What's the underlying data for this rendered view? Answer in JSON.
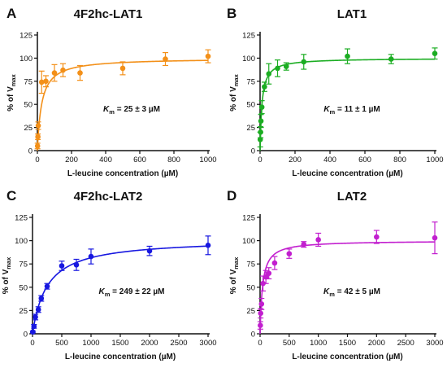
{
  "chart_data": [
    {
      "type": "scatter",
      "panel": "A",
      "title": "4F2hc-LAT1",
      "color": "#F39019",
      "xlabel": "L-leucine concentration (µM)",
      "ylabel": "% of V",
      "ylabel_sub": "max",
      "xlim": [
        0,
        1000
      ],
      "ylim": [
        0,
        125
      ],
      "xticks": [
        0,
        200,
        400,
        600,
        800,
        1000
      ],
      "yticks": [
        0,
        25,
        50,
        75,
        100,
        125
      ],
      "km_label": "K",
      "km_sub": "m",
      "km_text": " = 25 ± 3 µM",
      "fit": {
        "model": "michaelis-menten",
        "vmax": 100,
        "km": 25
      },
      "points": [
        {
          "x": 1,
          "y": 5,
          "err": 3
        },
        {
          "x": 3,
          "y": 15,
          "err": 3
        },
        {
          "x": 5,
          "y": 27,
          "err": 4
        },
        {
          "x": 25,
          "y": 74,
          "err": 12
        },
        {
          "x": 50,
          "y": 75,
          "err": 6
        },
        {
          "x": 100,
          "y": 84,
          "err": 9
        },
        {
          "x": 150,
          "y": 87,
          "err": 7
        },
        {
          "x": 250,
          "y": 84,
          "err": 8
        },
        {
          "x": 500,
          "y": 89,
          "err": 7
        },
        {
          "x": 750,
          "y": 99,
          "err": 7
        },
        {
          "x": 1000,
          "y": 102,
          "err": 7
        }
      ]
    },
    {
      "type": "scatter",
      "panel": "B",
      "title": "LAT1",
      "color": "#1BAD22",
      "xlabel": "L-leucine concentration (µM)",
      "ylabel": "% of V",
      "ylabel_sub": "max",
      "xlim": [
        0,
        1000
      ],
      "ylim": [
        0,
        125
      ],
      "xticks": [
        0,
        200,
        400,
        600,
        800,
        1000
      ],
      "yticks": [
        0,
        25,
        50,
        75,
        100,
        125
      ],
      "km_label": "K",
      "km_sub": "m",
      "km_text": " = 11 ± 1 µM",
      "fit": {
        "model": "michaelis-menten",
        "vmax": 100,
        "km": 11
      },
      "points": [
        {
          "x": 1,
          "y": 12,
          "err": 8
        },
        {
          "x": 3,
          "y": 20,
          "err": 6
        },
        {
          "x": 5,
          "y": 32,
          "err": 7
        },
        {
          "x": 10,
          "y": 47,
          "err": 7
        },
        {
          "x": 25,
          "y": 69,
          "err": 5
        },
        {
          "x": 50,
          "y": 83,
          "err": 11
        },
        {
          "x": 100,
          "y": 89,
          "err": 9
        },
        {
          "x": 150,
          "y": 91,
          "err": 4
        },
        {
          "x": 250,
          "y": 96,
          "err": 8
        },
        {
          "x": 500,
          "y": 102,
          "err": 8
        },
        {
          "x": 750,
          "y": 99,
          "err": 5
        },
        {
          "x": 1000,
          "y": 105,
          "err": 6
        }
      ]
    },
    {
      "type": "scatter",
      "panel": "C",
      "title": "4F2hc-LAT2",
      "color": "#1717E0",
      "xlabel": "L-leucine concentration (µM)",
      "ylabel": "% of V",
      "ylabel_sub": "max",
      "xlim": [
        0,
        3000
      ],
      "ylim": [
        0,
        125
      ],
      "xticks": [
        0,
        500,
        1000,
        1500,
        2000,
        2500,
        3000
      ],
      "yticks": [
        0,
        25,
        50,
        75,
        100,
        125
      ],
      "km_label": "K",
      "km_sub": "m",
      "km_text": " = 249 ± 22 µM",
      "fit": {
        "model": "michaelis-menten",
        "vmax": 102,
        "km": 249
      },
      "points": [
        {
          "x": 5,
          "y": 2,
          "err": 1
        },
        {
          "x": 25,
          "y": 8,
          "err": 2
        },
        {
          "x": 50,
          "y": 18,
          "err": 3
        },
        {
          "x": 100,
          "y": 26,
          "err": 3
        },
        {
          "x": 150,
          "y": 38,
          "err": 3
        },
        {
          "x": 250,
          "y": 51,
          "err": 3
        },
        {
          "x": 500,
          "y": 73,
          "err": 5
        },
        {
          "x": 750,
          "y": 74,
          "err": 6
        },
        {
          "x": 1000,
          "y": 83,
          "err": 8
        },
        {
          "x": 2000,
          "y": 89,
          "err": 5
        },
        {
          "x": 3000,
          "y": 95,
          "err": 10
        }
      ]
    },
    {
      "type": "scatter",
      "panel": "D",
      "title": "LAT2",
      "color": "#C21FCF",
      "xlabel": "L-leucine concentration (µM)",
      "ylabel": "% of V",
      "ylabel_sub": "max",
      "xlim": [
        0,
        3000
      ],
      "ylim": [
        0,
        125
      ],
      "xticks": [
        0,
        500,
        1000,
        1500,
        2000,
        2500,
        3000
      ],
      "yticks": [
        0,
        25,
        50,
        75,
        100,
        125
      ],
      "km_label": "K",
      "km_sub": "m",
      "km_text": " = 42 ± 5 µM",
      "fit": {
        "model": "michaelis-menten",
        "vmax": 100,
        "km": 42
      },
      "points": [
        {
          "x": 5,
          "y": 9,
          "err": 4
        },
        {
          "x": 10,
          "y": 22,
          "err": 5
        },
        {
          "x": 25,
          "y": 32,
          "err": 6
        },
        {
          "x": 50,
          "y": 54,
          "err": 8
        },
        {
          "x": 100,
          "y": 61,
          "err": 7
        },
        {
          "x": 150,
          "y": 65,
          "err": 6
        },
        {
          "x": 250,
          "y": 76,
          "err": 7
        },
        {
          "x": 500,
          "y": 86,
          "err": 5
        },
        {
          "x": 750,
          "y": 96,
          "err": 3
        },
        {
          "x": 1000,
          "y": 101,
          "err": 7
        },
        {
          "x": 2000,
          "y": 104,
          "err": 7
        },
        {
          "x": 3000,
          "y": 103,
          "err": 17
        }
      ]
    }
  ]
}
